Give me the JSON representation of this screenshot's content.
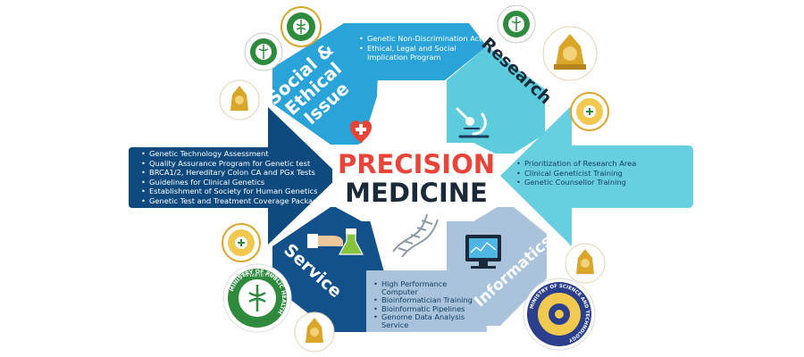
{
  "center": {
    "line1": "PRECISION",
    "line2": "MEDICINE"
  },
  "segments": {
    "social": {
      "title_lines": [
        "Social &",
        "Ethical",
        "Issue"
      ],
      "items": [
        "Genetic Non-Discrimination Act",
        "Ethical, Legal and Social Implication Program"
      ]
    },
    "research": {
      "title": "Research",
      "items": [
        "Prioritization of Research Area",
        "Clinical Geneticist Training",
        "Genetic Counsellor Training"
      ]
    },
    "service": {
      "title": "Service",
      "items": [
        "Genetic Technology Assessment",
        "Quality Assurance Program for Genetic test",
        "BRCA1/2, Hereditary Colon CA and PGx Tests",
        "Guidelines for Clinical Genetics",
        "Establishment of Society for Human Genetics",
        "Genetic Test and Treatment Coverage Package"
      ]
    },
    "informatics": {
      "title": "Informatics",
      "items": [
        "High Performance Computer",
        "Bioinformatician Training",
        "Bioinformatic Pipelines",
        "Genome Data Analysis Service"
      ]
    }
  },
  "logos": {
    "moph_ring_text": "MINISTRY OF PUBLIC HEALTH",
    "moph_thai_text": "กระทรวงสาธารณสุข",
    "most_text": "MINISTRY OF SCIENCE AND TECHNOLOGY"
  },
  "colors": {
    "social": "#2aa3d8",
    "research": "#5ccbdc",
    "service": "#12518a",
    "informatics": "#a9c3dc",
    "arrow_left": "#0f4a7e",
    "arrow_right": "#68cfe0",
    "precision_red": "#e8443a",
    "medicine_navy": "#1b2a3a",
    "seal_gold": "#d9a62a",
    "moph_green": "#2e8b3e"
  }
}
